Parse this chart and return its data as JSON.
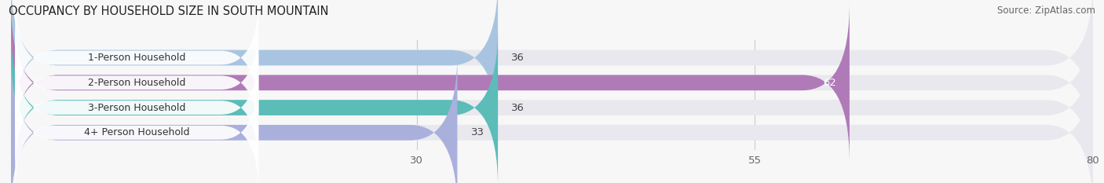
{
  "title": "OCCUPANCY BY HOUSEHOLD SIZE IN SOUTH MOUNTAIN",
  "source": "Source: ZipAtlas.com",
  "categories": [
    "1-Person Household",
    "2-Person Household",
    "3-Person Household",
    "4+ Person Household"
  ],
  "values": [
    36,
    62,
    36,
    33
  ],
  "bar_colors": [
    "#a8c4e0",
    "#b07ab8",
    "#5bbcb8",
    "#aab0dc"
  ],
  "bar_bg_color": "#e8e8ee",
  "xlim": [
    0,
    80
  ],
  "xticks": [
    30,
    55,
    80
  ],
  "label_color_inside": [
    "#444444",
    "#ffffff",
    "#444444",
    "#444444"
  ],
  "title_fontsize": 10.5,
  "source_fontsize": 8.5,
  "tick_fontsize": 9.5,
  "bar_label_fontsize": 9.5,
  "category_fontsize": 9,
  "figsize": [
    14.06,
    2.33
  ],
  "dpi": 100,
  "background_color": "#f7f7f7"
}
